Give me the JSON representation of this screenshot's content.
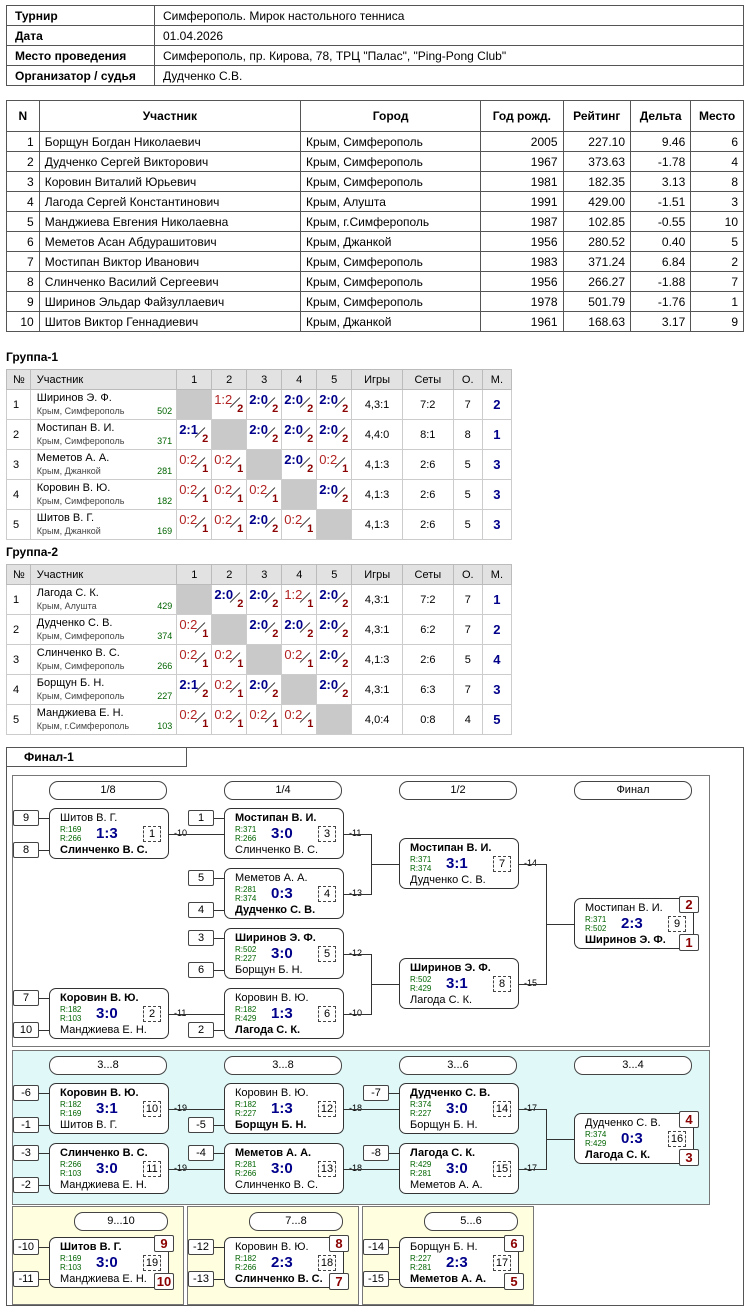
{
  "info": {
    "tournament_label": "Турнир",
    "tournament": "Симферополь. Мирок настольного тенниса",
    "date_label": "Дата",
    "date": "01.04.2026",
    "venue_label": "Место проведения",
    "venue": "Симферополь, пр. Кирова, 78, ТРЦ \"Палас\", \"Ping-Pong Club\"",
    "judge_label": "Организатор / судья",
    "judge": "Дудченко С.В."
  },
  "players": {
    "headers": [
      "N",
      "Участник",
      "Город",
      "Год рожд.",
      "Рейтинг",
      "Дельта",
      "Место"
    ],
    "rows": [
      [
        "1",
        "Борщун Богдан Николаевич",
        "Крым, Симферополь",
        "2005",
        "227.10",
        "9.46",
        "6"
      ],
      [
        "2",
        "Дудченко Сергей Викторович",
        "Крым, Симферополь",
        "1967",
        "373.63",
        "-1.78",
        "4"
      ],
      [
        "3",
        "Коровин Виталий Юрьевич",
        "Крым, Симферополь",
        "1981",
        "182.35",
        "3.13",
        "8"
      ],
      [
        "4",
        "Лагода Сергей Константинович",
        "Крым, Алушта",
        "1991",
        "429.00",
        "-1.51",
        "3"
      ],
      [
        "5",
        "Манджиева Евгения Николаевна",
        "Крым, г.Симферополь",
        "1987",
        "102.85",
        "-0.55",
        "10"
      ],
      [
        "6",
        "Меметов Асан Абдурашитович",
        "Крым, Джанкой",
        "1956",
        "280.52",
        "0.40",
        "5"
      ],
      [
        "7",
        "Мостипан Виктор Иванович",
        "Крым, Симферополь",
        "1983",
        "371.24",
        "6.84",
        "2"
      ],
      [
        "8",
        "Слинченко Василий Сергеевич",
        "Крым, Симферополь",
        "1956",
        "266.27",
        "-1.88",
        "7"
      ],
      [
        "9",
        "Ширинов Эльдар Файзуллаевич",
        "Крым, Симферополь",
        "1978",
        "501.79",
        "-1.76",
        "1"
      ],
      [
        "10",
        "Шитов Виктор Геннадиевич",
        "Крым, Джанкой",
        "1961",
        "168.63",
        "3.17",
        "9"
      ]
    ]
  },
  "group_headers": [
    "№",
    "Участник",
    "1",
    "2",
    "3",
    "4",
    "5",
    "Игры",
    "Сеты",
    "О.",
    "М."
  ],
  "groups": [
    {
      "title": "Группа-1",
      "rows": [
        {
          "n": "1",
          "name": "Ширинов Э. Ф.",
          "city": "Крым, Симферополь",
          "rating": "502",
          "cells": [
            null,
            [
              "1:2",
              "2",
              "l"
            ],
            [
              "2:0",
              "2",
              "w"
            ],
            [
              "2:0",
              "2",
              "w"
            ],
            [
              "2:0",
              "2",
              "w"
            ]
          ],
          "games": "4,3:1",
          "sets": "7:2",
          "pts": "7",
          "place": "2"
        },
        {
          "n": "2",
          "name": "Мостипан В. И.",
          "city": "Крым, Симферополь",
          "rating": "371",
          "cells": [
            [
              "2:1",
              "2",
              "w"
            ],
            null,
            [
              "2:0",
              "2",
              "w"
            ],
            [
              "2:0",
              "2",
              "w"
            ],
            [
              "2:0",
              "2",
              "w"
            ]
          ],
          "games": "4,4:0",
          "sets": "8:1",
          "pts": "8",
          "place": "1"
        },
        {
          "n": "3",
          "name": "Меметов А. А.",
          "city": "Крым, Джанкой",
          "rating": "281",
          "cells": [
            [
              "0:2",
              "1",
              "l"
            ],
            [
              "0:2",
              "1",
              "l"
            ],
            null,
            [
              "2:0",
              "2",
              "w"
            ],
            [
              "0:2",
              "1",
              "l"
            ]
          ],
          "games": "4,1:3",
          "sets": "2:6",
          "pts": "5",
          "place": "3"
        },
        {
          "n": "4",
          "name": "Коровин В. Ю.",
          "city": "Крым, Симферополь",
          "rating": "182",
          "cells": [
            [
              "0:2",
              "1",
              "l"
            ],
            [
              "0:2",
              "1",
              "l"
            ],
            [
              "0:2",
              "1",
              "l"
            ],
            null,
            [
              "2:0",
              "2",
              "w"
            ]
          ],
          "games": "4,1:3",
          "sets": "2:6",
          "pts": "5",
          "place": "3"
        },
        {
          "n": "5",
          "name": "Шитов В. Г.",
          "city": "Крым, Джанкой",
          "rating": "169",
          "cells": [
            [
              "0:2",
              "1",
              "l"
            ],
            [
              "0:2",
              "1",
              "l"
            ],
            [
              "2:0",
              "2",
              "w"
            ],
            [
              "0:2",
              "1",
              "l"
            ],
            null
          ],
          "games": "4,1:3",
          "sets": "2:6",
          "pts": "5",
          "place": "3"
        }
      ]
    },
    {
      "title": "Группа-2",
      "rows": [
        {
          "n": "1",
          "name": "Лагода С. К.",
          "city": "Крым, Алушта",
          "rating": "429",
          "cells": [
            null,
            [
              "2:0",
              "2",
              "w"
            ],
            [
              "2:0",
              "2",
              "w"
            ],
            [
              "1:2",
              "1",
              "l"
            ],
            [
              "2:0",
              "2",
              "w"
            ]
          ],
          "games": "4,3:1",
          "sets": "7:2",
          "pts": "7",
          "place": "1"
        },
        {
          "n": "2",
          "name": "Дудченко С. В.",
          "city": "Крым, Симферополь",
          "rating": "374",
          "cells": [
            [
              "0:2",
              "1",
              "l"
            ],
            null,
            [
              "2:0",
              "2",
              "w"
            ],
            [
              "2:0",
              "2",
              "w"
            ],
            [
              "2:0",
              "2",
              "w"
            ]
          ],
          "games": "4,3:1",
          "sets": "6:2",
          "pts": "7",
          "place": "2"
        },
        {
          "n": "3",
          "name": "Слинченко В. С.",
          "city": "Крым, Симферополь",
          "rating": "266",
          "cells": [
            [
              "0:2",
              "1",
              "l"
            ],
            [
              "0:2",
              "1",
              "l"
            ],
            null,
            [
              "0:2",
              "1",
              "l"
            ],
            [
              "2:0",
              "2",
              "w"
            ]
          ],
          "games": "4,1:3",
          "sets": "2:6",
          "pts": "5",
          "place": "4"
        },
        {
          "n": "4",
          "name": "Борщун Б. Н.",
          "city": "Крым, Симферополь",
          "rating": "227",
          "cells": [
            [
              "2:1",
              "2",
              "w"
            ],
            [
              "0:2",
              "1",
              "l"
            ],
            [
              "2:0",
              "2",
              "w"
            ],
            null,
            [
              "2:0",
              "2",
              "w"
            ]
          ],
          "games": "4,3:1",
          "sets": "6:3",
          "pts": "7",
          "place": "3"
        },
        {
          "n": "5",
          "name": "Манджиева Е. Н.",
          "city": "Крым, г.Симферополь",
          "rating": "103",
          "cells": [
            [
              "0:2",
              "1",
              "l"
            ],
            [
              "0:2",
              "1",
              "l"
            ],
            [
              "0:2",
              "1",
              "l"
            ],
            [
              "0:2",
              "1",
              "l"
            ],
            null
          ],
          "games": "4,0:4",
          "sets": "0:8",
          "pts": "4",
          "place": "5"
        }
      ]
    }
  ],
  "final": {
    "title": "Финал-1",
    "rounds_main": [
      "1/8",
      "1/4",
      "1/2",
      "Финал"
    ],
    "rounds_cons": [
      "3...8",
      "3...8",
      "3...6",
      "3...4"
    ],
    "rounds_small": [
      "9...10",
      "7...8",
      "5...6"
    ],
    "matches": [
      {
        "id": "m1",
        "p1": "Шитов В. Г.",
        "r1": "R:169",
        "p2": "Слинченко В. С.",
        "r2": "R:266",
        "score": "1:3",
        "num": "1",
        "w": 2,
        "s1": "9",
        "s2": "8",
        "out": "-10"
      },
      {
        "id": "m2",
        "p1": "Коровин В. Ю.",
        "r1": "R:182",
        "p2": "Манджиева Е. Н.",
        "r2": "R:103",
        "score": "3:0",
        "num": "2",
        "w": 1,
        "s1": "7",
        "s2": "10",
        "out": "-11"
      },
      {
        "id": "m3",
        "p1": "Мостипан В. И.",
        "r1": "R:371",
        "p2": "Слинченко В. С.",
        "r2": "R:266",
        "score": "3:0",
        "num": "3",
        "w": 1,
        "s1": "1",
        "out": "-11"
      },
      {
        "id": "m4",
        "p1": "Меметов А. А.",
        "r1": "R:281",
        "p2": "Дудченко С. В.",
        "r2": "R:374",
        "score": "0:3",
        "num": "4",
        "w": 2,
        "s1": "5",
        "s2": "4",
        "out": "-13"
      },
      {
        "id": "m5",
        "p1": "Ширинов Э. Ф.",
        "r1": "R:502",
        "p2": "Борщун Б. Н.",
        "r2": "R:227",
        "score": "3:0",
        "num": "5",
        "w": 1,
        "s1": "3",
        "s2": "6",
        "out": "-12"
      },
      {
        "id": "m6",
        "p1": "Коровин В. Ю.",
        "r1": "R:182",
        "p2": "Лагода С. К.",
        "r2": "R:429",
        "score": "1:3",
        "num": "6",
        "w": 2,
        "s2": "2",
        "out": "-10"
      },
      {
        "id": "m7",
        "p1": "Мостипан В. И.",
        "r1": "R:371",
        "p2": "Дудченко С. В.",
        "r2": "R:374",
        "score": "3:1",
        "num": "7",
        "w": 1,
        "out": "-14"
      },
      {
        "id": "m8",
        "p1": "Ширинов Э. Ф.",
        "r1": "R:502",
        "p2": "Лагода С. К.",
        "r2": "R:429",
        "score": "3:1",
        "num": "8",
        "w": 1,
        "out": "-15"
      },
      {
        "id": "m9",
        "p1": "Мостипан В. И.",
        "r1": "R:371",
        "p2": "Ширинов Э. Ф.",
        "r2": "R:502",
        "score": "2:3",
        "num": "9",
        "w": 2,
        "pl1": "2",
        "pl2": "1"
      },
      {
        "id": "m10",
        "p1": "Коровин В. Ю.",
        "r1": "R:182",
        "p2": "Шитов В. Г.",
        "r2": "R:169",
        "score": "3:1",
        "num": "10",
        "w": 1,
        "s1": "-6",
        "s2": "-1",
        "out": "-19"
      },
      {
        "id": "m11",
        "p1": "Слинченко В. С.",
        "r1": "R:266",
        "p2": "Манджиева Е. Н.",
        "r2": "R:103",
        "score": "3:0",
        "num": "11",
        "w": 1,
        "s1": "-3",
        "s2": "-2",
        "out": "-19"
      },
      {
        "id": "m12",
        "p1": "Коровин В. Ю.",
        "r1": "R:182",
        "p2": "Борщун Б. Н.",
        "r2": "R:227",
        "score": "1:3",
        "num": "12",
        "w": 2,
        "s2": "-5",
        "out": "-18"
      },
      {
        "id": "m13",
        "p1": "Меметов А. А.",
        "r1": "R:281",
        "p2": "Слинченко В. С.",
        "r2": "R:266",
        "score": "3:0",
        "num": "13",
        "w": 1,
        "s1": "-4",
        "out": "-18"
      },
      {
        "id": "m14",
        "p1": "Дудченко С. В.",
        "r1": "R:374",
        "p2": "Борщун Б. Н.",
        "r2": "R:227",
        "score": "3:0",
        "num": "14",
        "w": 1,
        "s1": "-7",
        "out": "-17"
      },
      {
        "id": "m15",
        "p1": "Лагода С. К.",
        "r1": "R:429",
        "p2": "Меметов А. А.",
        "r2": "R:281",
        "score": "3:0",
        "num": "15",
        "w": 1,
        "s1": "-8",
        "out": "-17"
      },
      {
        "id": "m16",
        "p1": "Дудченко С. В.",
        "r1": "R:374",
        "p2": "Лагода С. К.",
        "r2": "R:429",
        "score": "0:3",
        "num": "16",
        "w": 2,
        "pl1": "4",
        "pl2": "3"
      },
      {
        "id": "m19",
        "p1": "Шитов В. Г.",
        "r1": "R:169",
        "p2": "Манджиева Е. Н.",
        "r2": "R:103",
        "score": "3:0",
        "num": "19",
        "w": 1,
        "s1": "-10",
        "s2": "-11",
        "pl1": "9",
        "pl2": "10"
      },
      {
        "id": "m18",
        "p1": "Коровин В. Ю.",
        "r1": "R:182",
        "p2": "Слинченко В. С.",
        "r2": "R:266",
        "score": "2:3",
        "num": "18",
        "w": 2,
        "s1": "-12",
        "s2": "-13",
        "pl1": "8",
        "pl2": "7"
      },
      {
        "id": "m17",
        "p1": "Борщун Б. Н.",
        "r1": "R:227",
        "p2": "Меметов А. А.",
        "r2": "R:281",
        "score": "2:3",
        "num": "17",
        "w": 2,
        "s1": "-14",
        "s2": "-15",
        "pl1": "6",
        "pl2": "5"
      }
    ]
  },
  "colors": {
    "win_score": "#00008b",
    "loss_score": "#b22222",
    "place_box": "#8b0000",
    "rating": "#006400",
    "cons_bg": "#e0f8f8",
    "small_bg": "#ffffe0"
  }
}
